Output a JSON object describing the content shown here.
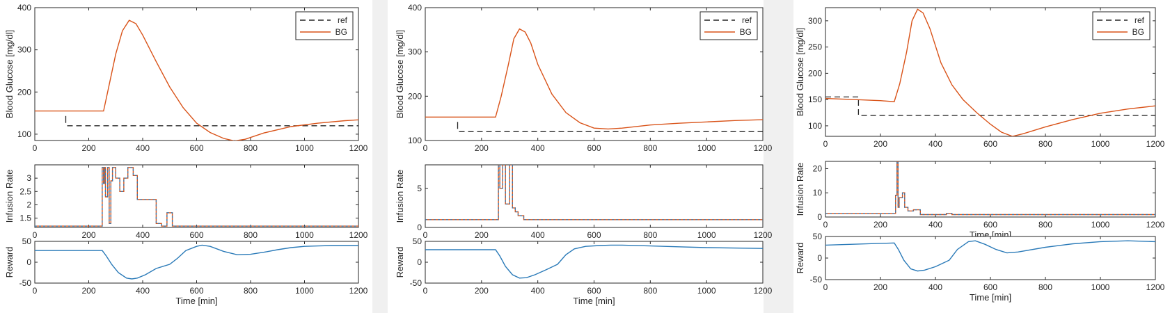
{
  "colors": {
    "background": "#f0f0f0",
    "panel": "#ffffff",
    "bg_line": "#d95319",
    "ref_line": "#262626",
    "reward_line": "#2a7ab8",
    "infusion_dash": "#2a7ab8"
  },
  "legend": {
    "ref_label": "ref",
    "bg_label": "BG"
  },
  "chart_data": [
    {
      "type": "line",
      "panel": 1,
      "plot": "glucose",
      "ylabel": "Blood Glucose [mg/dl]",
      "xlabel": "",
      "xlim": [
        0,
        1200
      ],
      "ylim": [
        85,
        400
      ],
      "xticks": [
        0,
        200,
        400,
        600,
        800,
        1000,
        1200
      ],
      "yticks": [
        100,
        200,
        300,
        400
      ],
      "legend": "top-right",
      "series": [
        {
          "name": "ref",
          "style": "dashed",
          "x": [
            120,
            1200
          ],
          "y": [
            120,
            120
          ]
        },
        {
          "name": "BG",
          "style": "solid",
          "x": [
            0,
            255,
            275,
            300,
            325,
            350,
            375,
            400,
            450,
            500,
            550,
            600,
            650,
            700,
            740,
            780,
            850,
            950,
            1050,
            1150,
            1200
          ],
          "y": [
            155,
            155,
            215,
            290,
            345,
            370,
            362,
            335,
            272,
            212,
            163,
            126,
            104,
            90,
            84,
            88,
            103,
            118,
            126,
            132,
            134
          ]
        }
      ]
    },
    {
      "type": "line",
      "panel": 1,
      "plot": "infusion",
      "ylabel": "Infusion Rate",
      "xlabel": "Time [min]",
      "xlim": [
        0,
        1200
      ],
      "ylim": [
        1.15,
        3.5
      ],
      "xticks": [
        0,
        200,
        400,
        600,
        800,
        1000,
        1200
      ],
      "yticks": [
        1.5,
        2,
        2.5,
        3
      ],
      "series": [
        {
          "x": [
            0,
            250,
            250,
            255,
            255,
            258,
            258,
            262,
            262,
            270,
            270,
            276,
            276,
            282,
            282,
            288,
            288,
            300,
            300,
            315,
            315,
            330,
            330,
            345,
            345,
            365,
            365,
            380,
            380,
            450,
            450,
            470,
            470,
            490,
            490,
            510,
            510,
            1200
          ],
          "y": [
            1.2,
            1.2,
            3.4,
            3.4,
            2.8,
            2.8,
            3.4,
            3.4,
            2.3,
            2.3,
            3.4,
            3.4,
            1.3,
            1.3,
            2.9,
            2.9,
            3.4,
            3.4,
            3.0,
            3.0,
            2.5,
            2.5,
            3.0,
            3.0,
            3.4,
            3.4,
            3.1,
            3.1,
            2.2,
            2.2,
            1.3,
            1.3,
            1.2,
            1.2,
            1.7,
            1.7,
            1.2,
            1.2
          ]
        }
      ]
    },
    {
      "type": "line",
      "panel": 1,
      "plot": "reward",
      "ylabel": "Reward",
      "xlabel": "Time [min]",
      "xlim": [
        0,
        1200
      ],
      "ylim": [
        -50,
        50
      ],
      "xticks": [
        0,
        200,
        400,
        600,
        800,
        1000,
        1200
      ],
      "yticks": [
        -50,
        0,
        50
      ],
      "series": [
        {
          "x": [
            0,
            250,
            265,
            285,
            310,
            340,
            360,
            380,
            410,
            450,
            500,
            530,
            560,
            600,
            620,
            650,
            700,
            750,
            800,
            850,
            900,
            950,
            1000,
            1050,
            1100,
            1200
          ],
          "y": [
            28,
            28,
            15,
            -5,
            -25,
            -38,
            -40,
            -38,
            -30,
            -15,
            -5,
            10,
            28,
            38,
            41,
            38,
            26,
            18,
            19,
            24,
            30,
            35,
            38,
            39,
            40,
            40
          ]
        }
      ]
    },
    {
      "type": "line",
      "panel": 2,
      "plot": "glucose",
      "ylabel": "Blood Glucose [mg/dl]",
      "xlabel": "",
      "xlim": [
        0,
        1200
      ],
      "ylim": [
        100,
        400
      ],
      "xticks": [
        0,
        200,
        400,
        600,
        800,
        1000,
        1200
      ],
      "yticks": [
        100,
        200,
        300,
        400
      ],
      "legend": "top-right",
      "series": [
        {
          "name": "ref",
          "style": "dashed",
          "x": [
            120,
            1200
          ],
          "y": [
            120,
            120
          ]
        },
        {
          "name": "BG",
          "style": "solid",
          "x": [
            0,
            250,
            270,
            295,
            315,
            335,
            355,
            375,
            400,
            450,
            500,
            550,
            600,
            650,
            700,
            800,
            900,
            1000,
            1100,
            1200
          ],
          "y": [
            153,
            153,
            200,
            270,
            330,
            352,
            345,
            320,
            272,
            205,
            163,
            140,
            128,
            126,
            128,
            135,
            139,
            142,
            145,
            147
          ]
        }
      ]
    },
    {
      "type": "line",
      "panel": 2,
      "plot": "infusion",
      "ylabel": "Infusion Rate",
      "xlabel": "Time [min]",
      "xlim": [
        0,
        1200
      ],
      "ylim": [
        0,
        8
      ],
      "xticks": [
        0,
        200,
        400,
        600,
        800,
        1000,
        1200
      ],
      "yticks": [
        0,
        5
      ],
      "series": [
        {
          "x": [
            0,
            260,
            260,
            265,
            265,
            275,
            275,
            285,
            285,
            300,
            300,
            310,
            310,
            320,
            320,
            330,
            330,
            350,
            350,
            1200
          ],
          "y": [
            1,
            1,
            8,
            8,
            5,
            5,
            8,
            8,
            3,
            3,
            8,
            8,
            2.5,
            2.5,
            2,
            2,
            1.5,
            1.5,
            1,
            1
          ]
        }
      ]
    },
    {
      "type": "line",
      "panel": 2,
      "plot": "reward",
      "ylabel": "Reward",
      "xlabel": "Time [min]",
      "xlim": [
        0,
        1200
      ],
      "ylim": [
        -50,
        50
      ],
      "xticks": [
        0,
        200,
        400,
        600,
        800,
        1000,
        1200
      ],
      "yticks": [
        -50,
        0,
        50
      ],
      "series": [
        {
          "x": [
            0,
            250,
            265,
            285,
            310,
            335,
            360,
            390,
            430,
            470,
            500,
            530,
            570,
            620,
            660,
            700,
            800,
            900,
            1000,
            1200
          ],
          "y": [
            30,
            30,
            15,
            -10,
            -30,
            -38,
            -37,
            -30,
            -18,
            -5,
            18,
            32,
            38,
            40,
            41,
            41,
            39,
            37,
            35,
            33
          ]
        }
      ]
    },
    {
      "type": "line",
      "panel": 3,
      "plot": "glucose",
      "ylabel": "Blood Glucose [mg/dl]",
      "xlabel": "",
      "xlim": [
        0,
        1200
      ],
      "ylim": [
        80,
        325
      ],
      "xticks": [
        0,
        200,
        400,
        600,
        800,
        1000,
        1200
      ],
      "yticks": [
        100,
        150,
        200,
        250,
        300
      ],
      "legend": "top-right",
      "series": [
        {
          "name": "ref",
          "style": "dashed",
          "x": [
            0,
            120,
            120,
            1200
          ],
          "y": [
            155,
            155,
            120,
            120
          ]
        },
        {
          "name": "BG",
          "style": "solid",
          "x": [
            0,
            100,
            200,
            250,
            270,
            295,
            315,
            335,
            355,
            380,
            420,
            460,
            500,
            550,
            600,
            640,
            680,
            720,
            800,
            900,
            1000,
            1100,
            1200
          ],
          "y": [
            152,
            150,
            148,
            146,
            180,
            240,
            300,
            322,
            315,
            285,
            220,
            178,
            150,
            125,
            103,
            88,
            80,
            85,
            98,
            112,
            124,
            132,
            138
          ]
        }
      ]
    },
    {
      "type": "line",
      "panel": 3,
      "plot": "infusion",
      "ylabel": "Infusion Rate",
      "xlabel": "Time [min]",
      "xlim": [
        0,
        1200
      ],
      "ylim": [
        0,
        23
      ],
      "xticks": [
        0,
        200,
        400,
        600,
        800,
        1000,
        1200
      ],
      "yticks": [
        0,
        10,
        20
      ],
      "series": [
        {
          "x": [
            0,
            255,
            255,
            260,
            260,
            264,
            264,
            268,
            268,
            280,
            280,
            288,
            288,
            300,
            300,
            320,
            320,
            345,
            345,
            440,
            440,
            460,
            460,
            1200
          ],
          "y": [
            1.5,
            1.5,
            9,
            9,
            23,
            23,
            4,
            4,
            8,
            8,
            10,
            10,
            4,
            4,
            2.5,
            2.5,
            3,
            3,
            1,
            1,
            1.5,
            1.5,
            1,
            1
          ]
        }
      ]
    },
    {
      "type": "line",
      "panel": 3,
      "plot": "reward",
      "ylabel": "Reward",
      "xlabel": "Time [min]",
      "xlim": [
        0,
        1200
      ],
      "ylim": [
        -50,
        50
      ],
      "xticks": [
        0,
        200,
        400,
        600,
        800,
        1000,
        1200
      ],
      "yticks": [
        -50,
        0,
        50
      ],
      "series": [
        {
          "x": [
            0,
            250,
            265,
            285,
            310,
            335,
            360,
            400,
            450,
            480,
            520,
            545,
            580,
            620,
            660,
            700,
            800,
            900,
            1000,
            1100,
            1200
          ],
          "y": [
            30,
            35,
            20,
            -5,
            -25,
            -30,
            -28,
            -20,
            -5,
            20,
            38,
            40,
            32,
            20,
            12,
            14,
            25,
            33,
            38,
            40,
            38
          ]
        }
      ]
    }
  ]
}
